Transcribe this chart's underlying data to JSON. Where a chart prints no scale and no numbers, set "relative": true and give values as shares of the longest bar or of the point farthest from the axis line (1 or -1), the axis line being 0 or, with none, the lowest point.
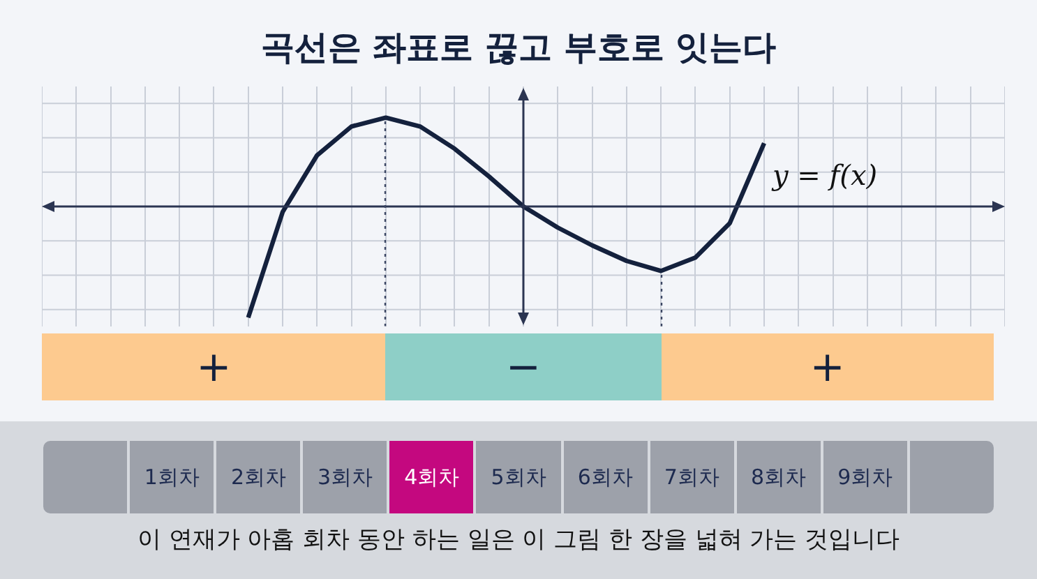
{
  "chart_data": {
    "type": "line",
    "relative": true,
    "title": "곡선은 좌표로 끊고 부호로 잇는다",
    "categories": [
      null,
      null,
      null,
      null,
      null,
      null,
      null,
      null,
      null,
      null,
      null,
      null,
      null,
      null,
      null,
      null,
      null,
      null,
      null,
      null,
      null,
      null,
      null,
      null,
      null,
      null,
      null,
      null,
      null
    ],
    "values": [
      null,
      null,
      null,
      null,
      null,
      null,
      -1,
      -0.05,
      0.46,
      0.72,
      0.8,
      0.72,
      0.52,
      0.27,
      0,
      -0.19,
      -0.35,
      -0.49,
      -0.58,
      -0.46,
      -0.15,
      0.57,
      null,
      null,
      null,
      null,
      null,
      null,
      null
    ],
    "color": "#14213d",
    "grid": true,
    "marker": "none",
    "tick_labels": false,
    "annotations": [
      "y = f(x)",
      "+",
      "−",
      "+",
      "1회차",
      "2회차",
      "3회차",
      "4회차",
      "5회차",
      "6회차",
      "7회차",
      "8회차",
      "9회차",
      "이 연재가 아홉 회차 동안 하는 일은 이 그림 한 장을 넓혀 가는 것입니다"
    ]
  }
}
